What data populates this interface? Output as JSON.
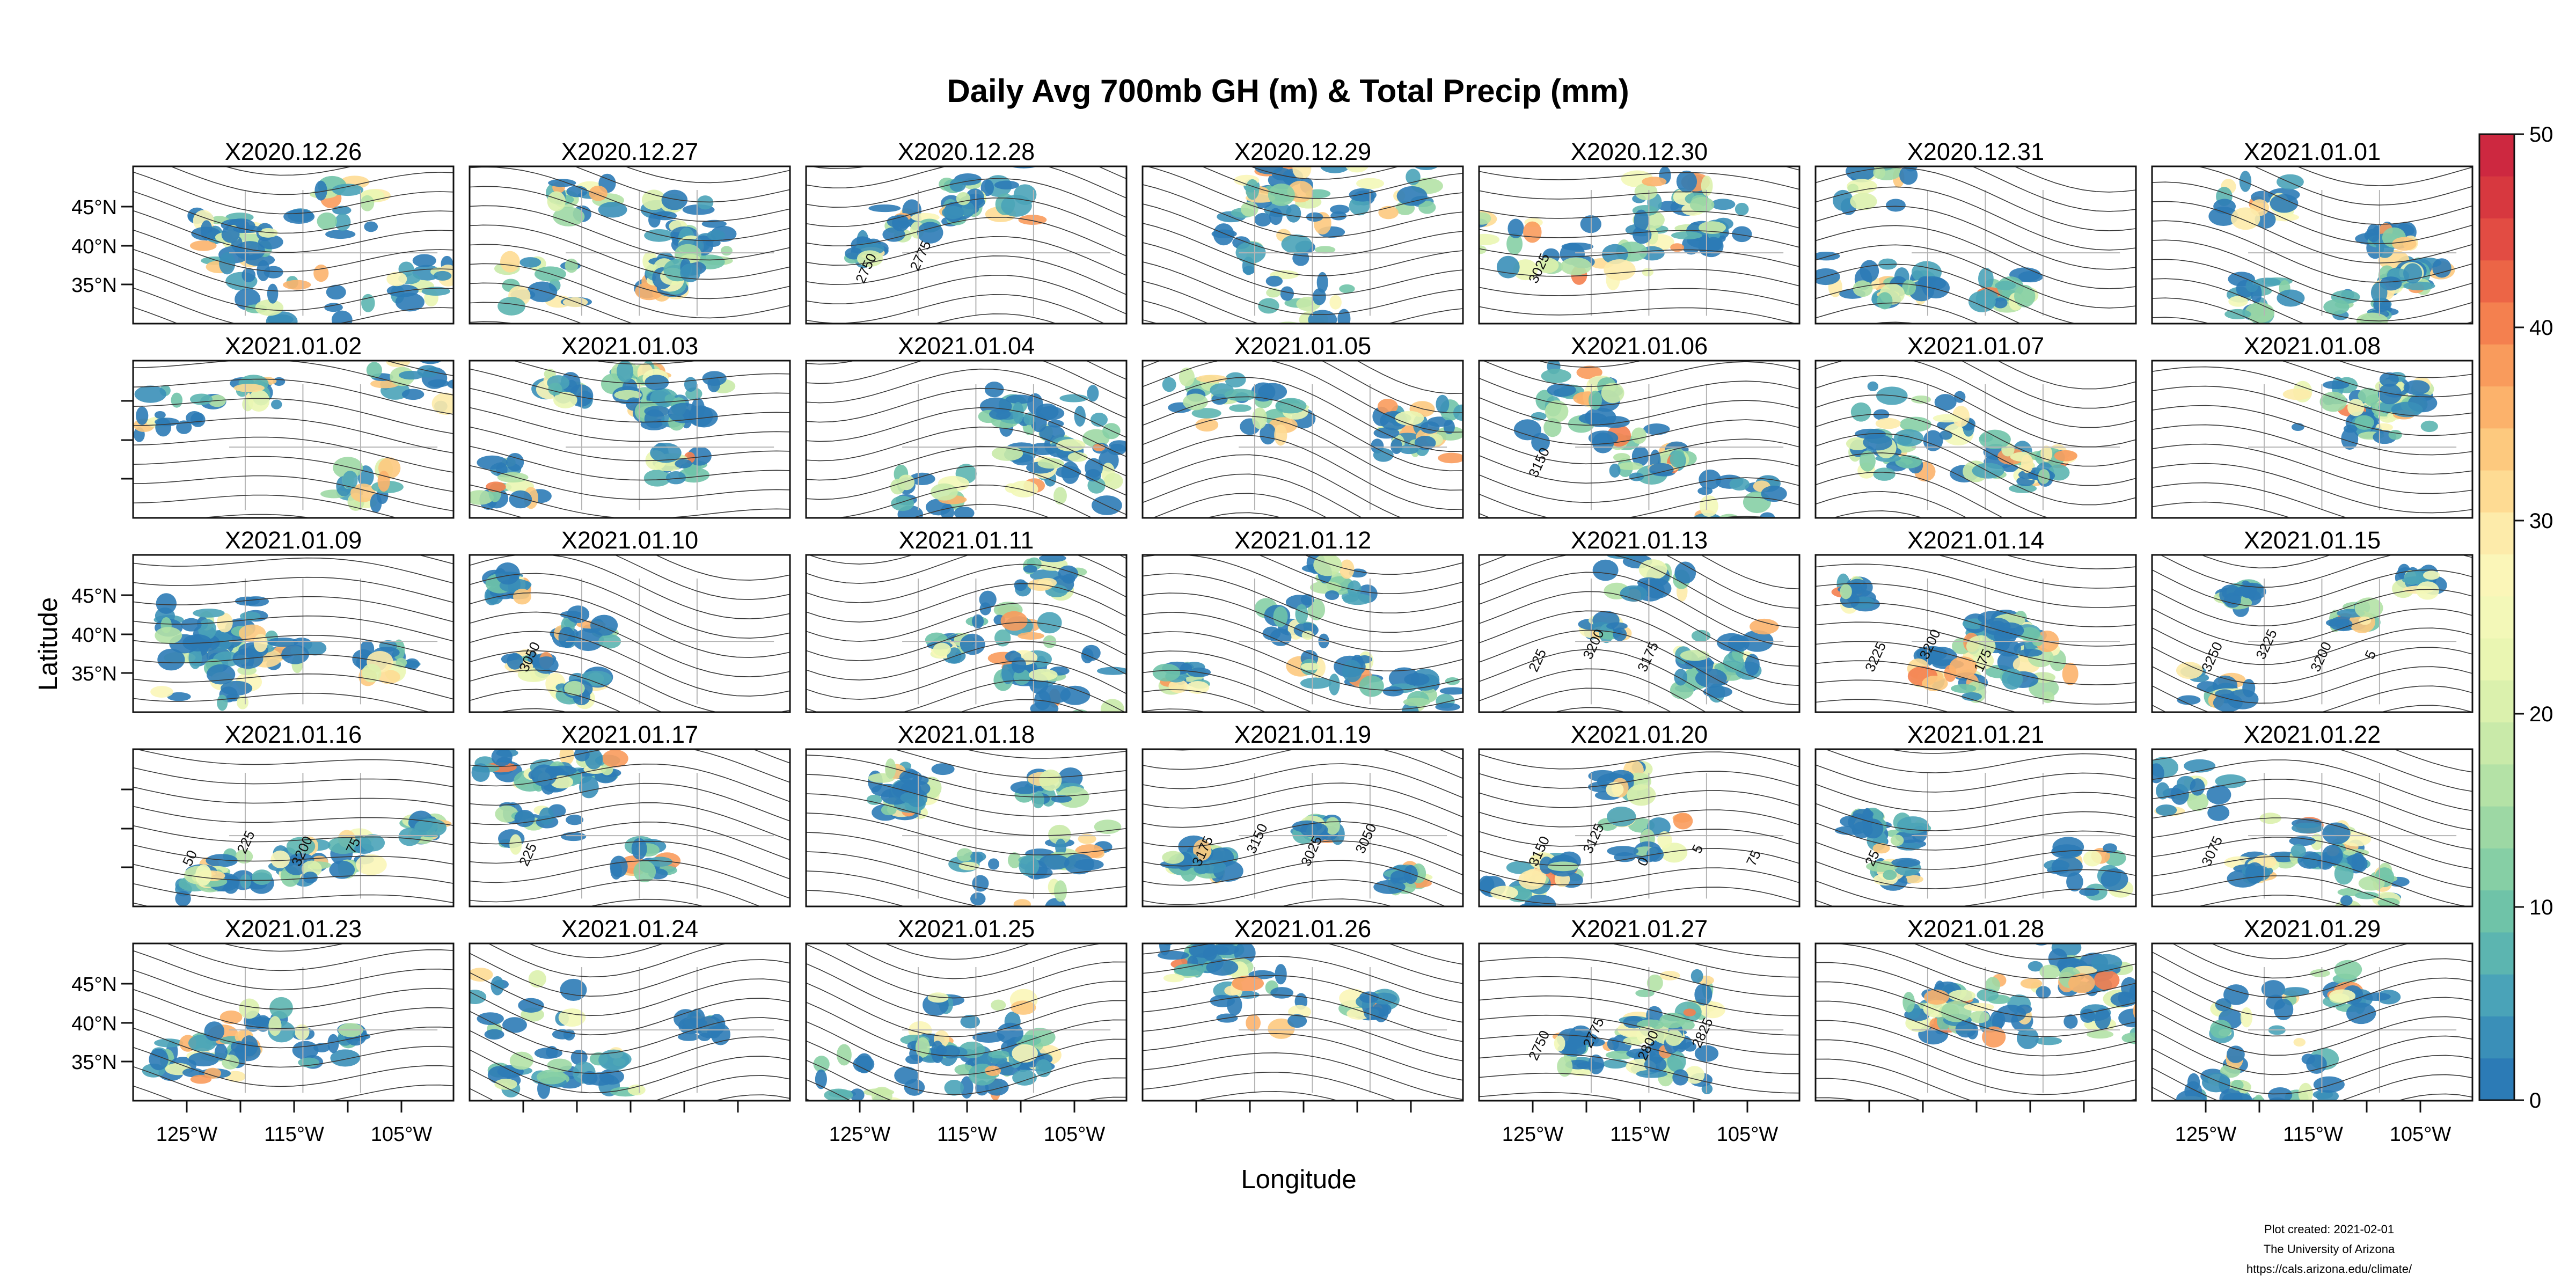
{
  "chart_data": {
    "type": "heatmap",
    "title": "Daily Avg 700mb GH (m) & Total Precip (mm)",
    "xlabel": "Longitude",
    "ylabel": "Latitude",
    "x_ticks": [
      "125°W",
      "115°W",
      "105°W"
    ],
    "y_ticks": [
      "45°N",
      "40°N",
      "35°N"
    ],
    "colorbar": {
      "min": 0,
      "max": 50,
      "ticks": [
        0,
        10,
        20,
        30,
        40,
        50
      ],
      "colors": [
        "#2c7bb6",
        "#3a8fb8",
        "#4aa3b8",
        "#5cb5b0",
        "#6fc3a8",
        "#86cfa5",
        "#9dd8a4",
        "#b4e2a6",
        "#c9eaa9",
        "#dbf1ad",
        "#eaf6b2",
        "#f3f8b8",
        "#fbf6b8",
        "#fdebaa",
        "#fedb93",
        "#fdc97e",
        "#fcb26b",
        "#f99b5c",
        "#f4804f",
        "#ec6546",
        "#e24c43",
        "#d7383f",
        "#cd2840"
      ]
    },
    "panels": [
      {
        "label": "X2020.12.26",
        "contours": []
      },
      {
        "label": "X2020.12.27",
        "contours": []
      },
      {
        "label": "X2020.12.28",
        "contours": [
          "2750",
          "2775"
        ]
      },
      {
        "label": "X2020.12.29",
        "contours": []
      },
      {
        "label": "X2020.12.30",
        "contours": [
          "3025"
        ]
      },
      {
        "label": "X2020.12.31",
        "contours": []
      },
      {
        "label": "X2021.01.01",
        "contours": []
      },
      {
        "label": "X2021.01.02",
        "contours": []
      },
      {
        "label": "X2021.01.03",
        "contours": []
      },
      {
        "label": "X2021.01.04",
        "contours": []
      },
      {
        "label": "X2021.01.05",
        "contours": []
      },
      {
        "label": "X2021.01.06",
        "contours": [
          "3150"
        ]
      },
      {
        "label": "X2021.01.07",
        "contours": []
      },
      {
        "label": "X2021.01.08",
        "contours": []
      },
      {
        "label": "X2021.01.09",
        "contours": []
      },
      {
        "label": "X2021.01.10",
        "contours": [
          "3050"
        ]
      },
      {
        "label": "X2021.01.11",
        "contours": []
      },
      {
        "label": "X2021.01.12",
        "contours": []
      },
      {
        "label": "X2021.01.13",
        "contours": [
          "225",
          "3200",
          "3175"
        ]
      },
      {
        "label": "X2021.01.14",
        "contours": [
          "3225",
          "3200",
          "175"
        ]
      },
      {
        "label": "X2021.01.15",
        "contours": [
          "3250",
          "3225",
          "3200",
          "5"
        ]
      },
      {
        "label": "X2021.01.16",
        "contours": [
          "50",
          "225",
          "3200",
          "75"
        ]
      },
      {
        "label": "X2021.01.17",
        "contours": [
          "225"
        ]
      },
      {
        "label": "X2021.01.18",
        "contours": []
      },
      {
        "label": "X2021.01.19",
        "contours": [
          "3175",
          "3150",
          "3025",
          "3050"
        ]
      },
      {
        "label": "X2021.01.20",
        "contours": [
          "3150",
          "3125",
          "0",
          "5",
          "75"
        ]
      },
      {
        "label": "X2021.01.21",
        "contours": [
          "25"
        ]
      },
      {
        "label": "X2021.01.22",
        "contours": [
          "3075"
        ]
      },
      {
        "label": "X2021.01.23",
        "contours": []
      },
      {
        "label": "X2021.01.24",
        "contours": []
      },
      {
        "label": "X2021.01.25",
        "contours": []
      },
      {
        "label": "X2021.01.26",
        "contours": []
      },
      {
        "label": "X2021.01.27",
        "contours": [
          "2750",
          "2775",
          "2800",
          "2825"
        ]
      },
      {
        "label": "X2021.01.28",
        "contours": []
      },
      {
        "label": "X2021.01.29",
        "contours": []
      }
    ]
  },
  "footer": {
    "line1": "Plot created: 2021-02-01",
    "line2": "The University of Arizona",
    "line3": "https://cals.arizona.edu/climate/"
  }
}
